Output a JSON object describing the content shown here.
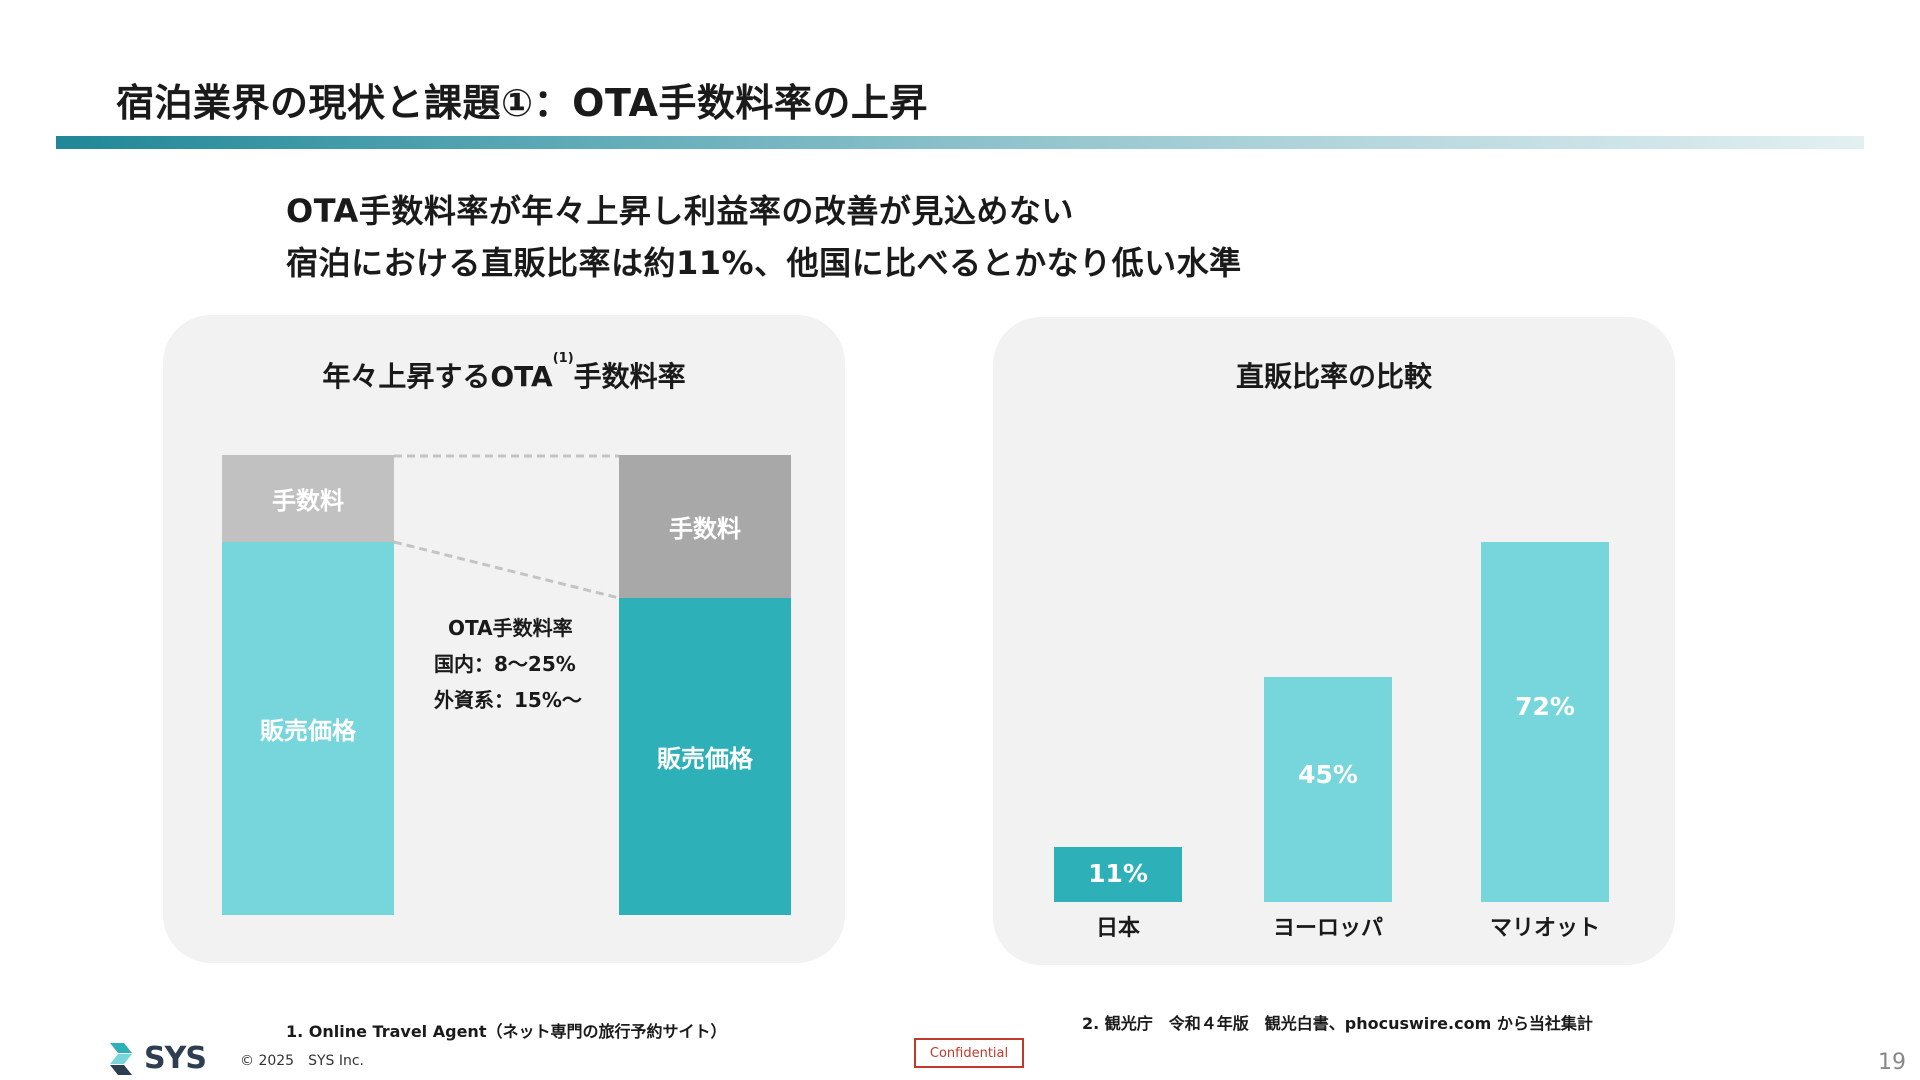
{
  "slide": {
    "title": "宿泊業界の現状と課題①：OTA手数料率の上昇",
    "headline_lines": [
      "OTA手数料率が年々上昇し利益率の改善が見込めない",
      "宿泊における直販比率は約11%、他国に比べるとかなり低い水準"
    ],
    "footnote_1": "1. Online Travel Agent（ネット専門の旅行予約サイト）",
    "footnote_2": "2. 観光庁　令和４年版　観光白書、phocuswire.com から当社集計",
    "copyright": "© 2025　SYS Inc.",
    "logo_text": "SYS",
    "confidential": "Confidential",
    "page_number": "19"
  },
  "colors": {
    "light_teal": "#76d6dc",
    "dark_teal": "#2eb0b9",
    "light_gray": "#c1c1c1",
    "dark_gray": "#a8a8a8",
    "panel_bg": "#f2f2f2"
  },
  "chart_data": [
    {
      "type": "bar",
      "stacked": true,
      "title": "年々上昇するOTA",
      "title_ref": "(1)",
      "title_suffix": "手数料率",
      "stack_labels": [
        "販売価格",
        "手数料"
      ],
      "bars": [
        {
          "sales_label": "販売価格",
          "fee_label": "手数料",
          "sales_share": 0.81,
          "fee_share": 0.19
        },
        {
          "sales_label": "販売価格",
          "fee_label": "手数料",
          "sales_share": 0.69,
          "fee_share": 0.31
        }
      ],
      "annotation_lines": [
        "OTA手数料率",
        "国内：8〜25%",
        "外資系：15%〜"
      ]
    },
    {
      "type": "bar",
      "title": "直販比率の比較",
      "categories": [
        "日本",
        "ヨーロッパ",
        "マリオット"
      ],
      "values": [
        11,
        45,
        72
      ],
      "value_labels": [
        "11%",
        "45%",
        "72%"
      ],
      "unit": "%",
      "ylim": [
        0,
        100
      ]
    }
  ]
}
